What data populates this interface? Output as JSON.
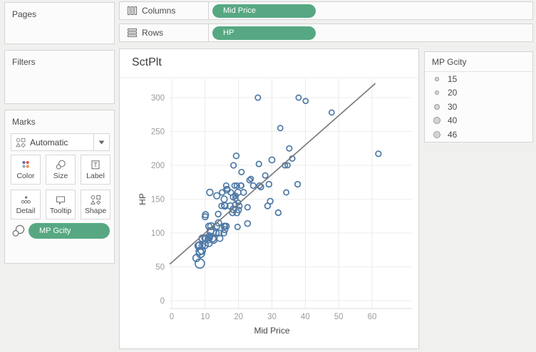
{
  "shelves": {
    "columns": {
      "label": "Columns",
      "pill": "Mid Price"
    },
    "rows": {
      "label": "Rows",
      "pill": "HP"
    }
  },
  "sidebar": {
    "pages": {
      "title": "Pages"
    },
    "filters": {
      "title": "Filters"
    },
    "marks": {
      "title": "Marks",
      "mark_type": "Automatic",
      "buttons": [
        {
          "label": "Color"
        },
        {
          "label": "Size"
        },
        {
          "label": "Label"
        },
        {
          "label": "Detail"
        },
        {
          "label": "Tooltip"
        },
        {
          "label": "Shape"
        }
      ],
      "pill": "MP Gcity"
    }
  },
  "worksheet": {
    "title": "SctPlt"
  },
  "legend": {
    "title": "MP Gcity",
    "sizes": [
      15,
      20,
      30,
      40,
      46
    ]
  },
  "colors": {
    "pill_green": "#57A882",
    "point_blue": "#4e79a7",
    "trend_gray": "#7b7b7b",
    "gridline": "#e9e9e9",
    "tick_label": "#9b9b9b",
    "axis_title": "#454545",
    "legend_circle_fill": "#d4d4d4",
    "legend_circle_border": "#9b9b9b"
  },
  "chart_data": {
    "type": "scatter",
    "title": "SctPlt",
    "xlabel": "Mid Price",
    "ylabel": "HP",
    "size_field": "MP Gcity",
    "size_legend": [
      15,
      20,
      30,
      40,
      46
    ],
    "xlim": [
      -1.5,
      65
    ],
    "ylim": [
      -12,
      327
    ],
    "x_ticks": [
      0,
      10,
      20,
      30,
      40,
      50,
      60
    ],
    "y_ticks": [
      0,
      50,
      100,
      150,
      200,
      250,
      300
    ],
    "grid": true,
    "marker": "open-circle",
    "points_format": [
      "mid_price",
      "hp",
      "mpg_city"
    ],
    "points": [
      [
        15.9,
        140,
        25
      ],
      [
        33.9,
        200,
        18
      ],
      [
        29.1,
        172,
        20
      ],
      [
        37.7,
        172,
        19
      ],
      [
        30,
        208,
        22
      ],
      [
        15.7,
        110,
        22
      ],
      [
        20.8,
        170,
        19
      ],
      [
        23.7,
        180,
        16
      ],
      [
        26.3,
        170,
        19
      ],
      [
        34.7,
        200,
        16
      ],
      [
        40.1,
        295,
        16
      ],
      [
        13.4,
        110,
        25
      ],
      [
        11.4,
        160,
        25
      ],
      [
        15.1,
        160,
        19
      ],
      [
        15.9,
        110,
        21
      ],
      [
        16.3,
        170,
        18
      ],
      [
        16.6,
        165,
        15
      ],
      [
        18.8,
        170,
        17
      ],
      [
        38,
        300,
        17
      ],
      [
        18.4,
        153,
        20
      ],
      [
        15.8,
        141,
        23
      ],
      [
        29.5,
        147,
        20
      ],
      [
        9.2,
        92,
        29
      ],
      [
        11.3,
        93,
        23
      ],
      [
        13.3,
        100,
        22
      ],
      [
        19,
        142,
        17
      ],
      [
        15.6,
        100,
        21
      ],
      [
        25.8,
        300,
        18
      ],
      [
        12.2,
        92,
        29
      ],
      [
        19.3,
        214,
        20
      ],
      [
        7.4,
        63,
        31
      ],
      [
        10.1,
        127,
        23
      ],
      [
        11.3,
        96,
        22
      ],
      [
        15.9,
        105,
        22
      ],
      [
        14,
        115,
        24
      ],
      [
        19.9,
        145,
        15
      ],
      [
        20.2,
        140,
        21
      ],
      [
        20.9,
        190,
        18
      ],
      [
        8.4,
        55,
        46
      ],
      [
        12.5,
        90,
        30
      ],
      [
        19.8,
        160,
        24
      ],
      [
        12.1,
        102,
        42
      ],
      [
        17.5,
        140,
        24
      ],
      [
        8,
        81,
        29
      ],
      [
        10,
        124,
        22
      ],
      [
        10,
        92,
        26
      ],
      [
        13.9,
        128,
        20
      ],
      [
        47.9,
        278,
        17
      ],
      [
        28,
        185,
        18
      ],
      [
        35.2,
        225,
        18
      ],
      [
        34.3,
        160,
        17
      ],
      [
        36.1,
        210,
        18
      ],
      [
        8.3,
        82,
        29
      ],
      [
        11.6,
        103,
        28
      ],
      [
        16.5,
        164,
        26
      ],
      [
        19.1,
        155,
        18
      ],
      [
        32.5,
        255,
        17
      ],
      [
        31.9,
        130,
        20
      ],
      [
        61.9,
        217,
        19
      ],
      [
        14.1,
        100,
        23
      ],
      [
        14.9,
        140,
        18
      ],
      [
        10.3,
        92,
        29
      ],
      [
        26.1,
        202,
        18
      ],
      [
        11.8,
        110,
        29
      ],
      [
        15.7,
        150,
        24
      ],
      [
        19.1,
        151,
        17
      ],
      [
        21.5,
        160,
        21
      ],
      [
        13.5,
        155,
        24
      ],
      [
        16.3,
        110,
        23
      ],
      [
        19.5,
        170,
        18
      ],
      [
        20.7,
        170,
        19
      ],
      [
        14.4,
        92,
        23
      ],
      [
        9,
        74,
        31
      ],
      [
        11.1,
        110,
        23
      ],
      [
        17.7,
        160,
        19
      ],
      [
        18.5,
        200,
        19
      ],
      [
        24.4,
        170,
        19
      ],
      [
        28.7,
        140,
        20
      ],
      [
        11.1,
        85,
        28
      ],
      [
        8.4,
        73,
        33
      ],
      [
        10.9,
        90,
        25
      ],
      [
        19.5,
        130,
        23
      ],
      [
        8.6,
        70,
        39
      ],
      [
        9.8,
        82,
        32
      ],
      [
        18.4,
        135,
        25
      ],
      [
        18.2,
        130,
        22
      ],
      [
        22.7,
        138,
        18
      ],
      [
        9.1,
        81,
        25
      ],
      [
        19.7,
        109,
        18
      ],
      [
        20,
        134,
        21
      ],
      [
        23.3,
        178,
        18
      ],
      [
        22.7,
        114,
        21
      ],
      [
        26.7,
        168,
        20
      ]
    ],
    "trend_line": {
      "x1": -0.6,
      "y1": 54,
      "x2": 61,
      "y2": 321
    }
  }
}
